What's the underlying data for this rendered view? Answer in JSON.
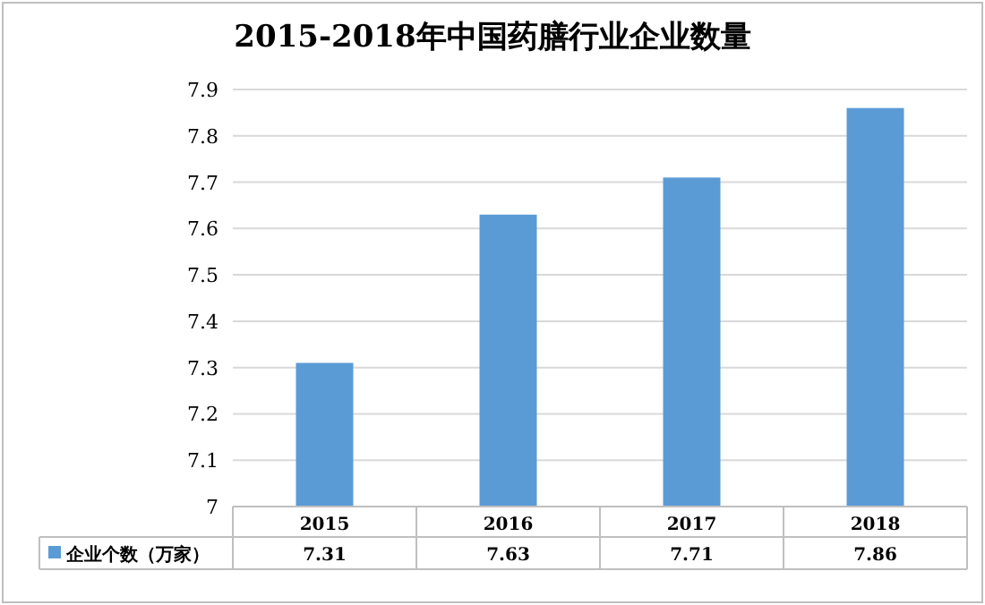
{
  "chart_data": {
    "type": "bar",
    "title": "2015-2018年中国药膳行业企业数量",
    "categories": [
      "2015",
      "2016",
      "2017",
      "2018"
    ],
    "series": [
      {
        "name": "企业个数（万家）",
        "color": "#5b9bd5",
        "values": [
          7.31,
          7.63,
          7.71,
          7.86
        ]
      }
    ],
    "ylim": [
      7,
      7.9
    ],
    "yticks": [
      7,
      7.1,
      7.2,
      7.3,
      7.4,
      7.5,
      7.6,
      7.7,
      7.8,
      7.9
    ],
    "grid": "y",
    "data_labels": true,
    "legend": "bottom left"
  }
}
